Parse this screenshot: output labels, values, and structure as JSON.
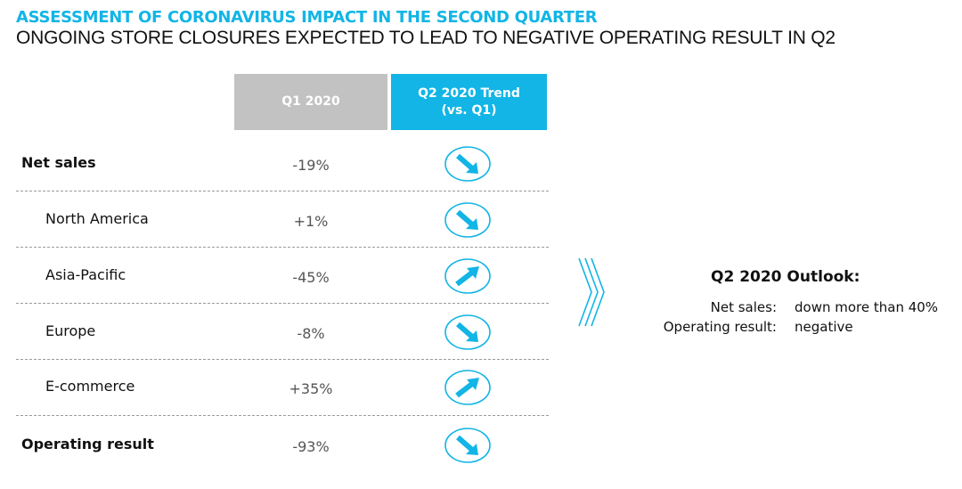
{
  "header": {
    "title": "ASSESSMENT OF CORONAVIRUS IMPACT IN THE SECOND QUARTER",
    "subtitle": "ONGOING STORE CLOSURES EXPECTED TO LEAD TO NEGATIVE OPERATING RESULT IN Q2"
  },
  "table": {
    "columns": {
      "q1": "Q1 2020",
      "q2_line1": "Q2 2020 Trend",
      "q2_line2": "(vs. Q1)"
    },
    "rows": [
      {
        "label": "Net sales",
        "value": "-19%",
        "trend": "down",
        "level": "main"
      },
      {
        "label": "North America",
        "value": "+1%",
        "trend": "down",
        "level": "sub"
      },
      {
        "label": "Asia-Pacific",
        "value": "-45%",
        "trend": "up",
        "level": "sub"
      },
      {
        "label": "Europe",
        "value": "-8%",
        "trend": "down",
        "level": "sub"
      },
      {
        "label": "E-commerce",
        "value": "+35%",
        "trend": "up",
        "level": "sub"
      },
      {
        "label": "Operating result",
        "value": "-93%",
        "trend": "down",
        "level": "main"
      }
    ]
  },
  "outlook": {
    "title": "Q2 2020 Outlook:",
    "items": [
      {
        "label": "Net sales:",
        "value": "down more than 40%"
      },
      {
        "label": "Operating result:",
        "value": "negative"
      }
    ]
  },
  "colors": {
    "accent": "#12b5e5",
    "header_gray": "#c2c2c2",
    "text": "#111111",
    "value_gray": "#555555"
  },
  "icons": {
    "trend_down": "arrow-down-right-icon",
    "trend_up": "arrow-up-right-icon",
    "chevron": "double-chevron-right-icon"
  }
}
